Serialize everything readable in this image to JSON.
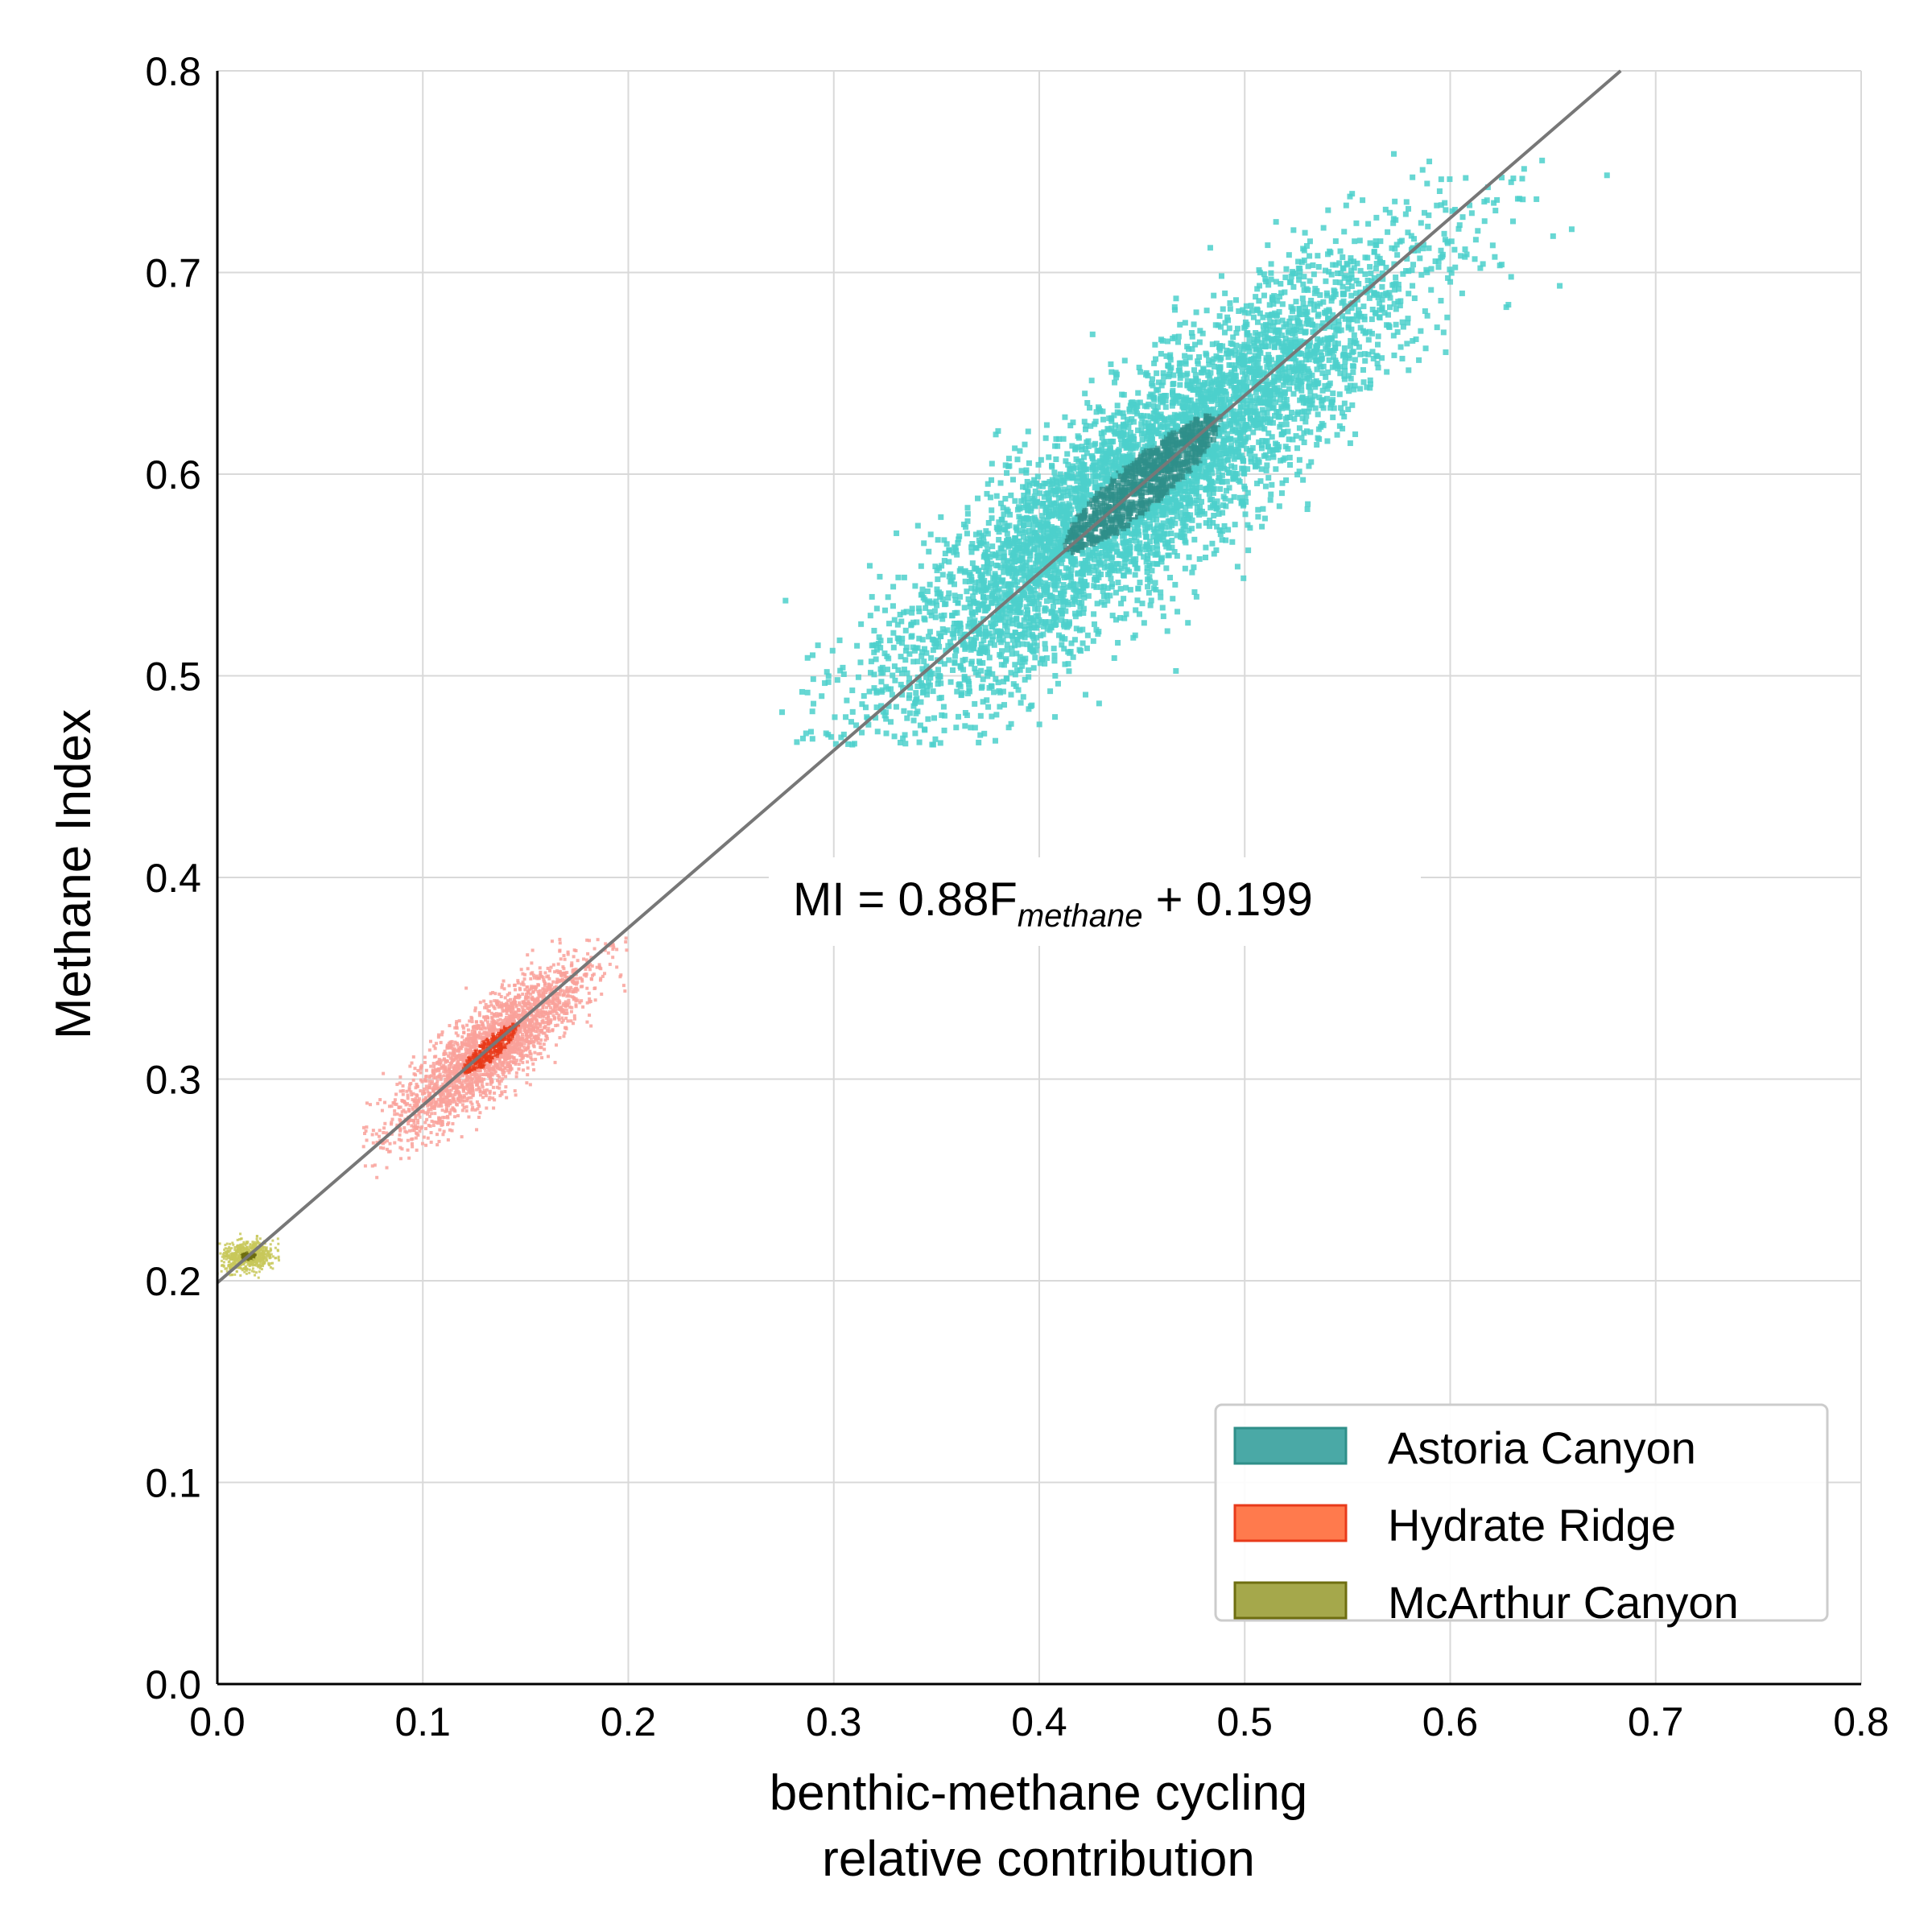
{
  "chart_data": {
    "type": "heatmap",
    "xlabel_line1": "benthic-methane cycling",
    "xlabel_line2": "relative contribution",
    "ylabel": "Methane Index",
    "xlim": [
      0.0,
      0.8
    ],
    "ylim": [
      0.0,
      0.8
    ],
    "xticks": [
      "0.0",
      "0.1",
      "0.2",
      "0.3",
      "0.4",
      "0.5",
      "0.6",
      "0.7",
      "0.8"
    ],
    "yticks": [
      "0.0",
      "0.1",
      "0.2",
      "0.3",
      "0.4",
      "0.5",
      "0.6",
      "0.7",
      "0.8"
    ],
    "grid": true,
    "legend_position": "lower-right",
    "series": [
      {
        "name": "Astoria Canyon",
        "color": "#4cd0cb",
        "dark_color": "#2f8f89",
        "legend_color": "#4aa9a6",
        "center": [
          0.45,
          0.595
        ],
        "x_range": [
          0.27,
          0.69
        ],
        "y_range": [
          0.465,
          0.76
        ],
        "major_sd": 0.085,
        "minor_sd": 0.02,
        "slope": 0.88
      },
      {
        "name": "Hydrate Ridge",
        "color": "#f9a19a",
        "dark_color": "#e83a1a",
        "legend_color": "#ff7a4d",
        "center": [
          0.133,
          0.315
        ],
        "x_range": [
          0.07,
          0.2
        ],
        "y_range": [
          0.245,
          0.37
        ],
        "major_sd": 0.03,
        "minor_sd": 0.0085,
        "slope": 0.88
      },
      {
        "name": "McArthur Canyon",
        "color": "#c8c85a",
        "dark_color": "#6e6e10",
        "legend_color": "#a5a84b",
        "center": [
          0.015,
          0.212
        ],
        "x_range": [
          0.0,
          0.03
        ],
        "y_range": [
          0.2,
          0.225
        ],
        "major_sd": 0.0065,
        "minor_sd": 0.0035,
        "slope": 0.1
      }
    ],
    "regression": {
      "slope": 0.88,
      "intercept": 0.199,
      "color": "#777777"
    },
    "annotation": {
      "prefix": "MI = 0.88F",
      "subscript": "methane",
      "suffix": " + 0.199"
    }
  }
}
